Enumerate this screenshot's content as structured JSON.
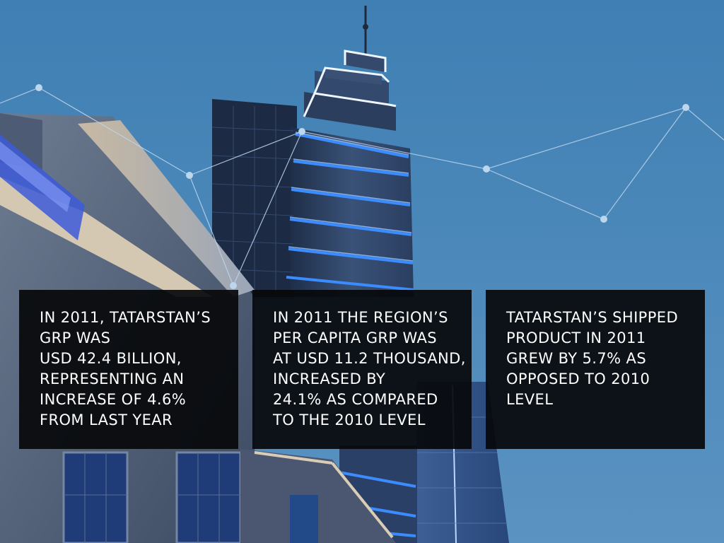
{
  "background": {
    "subject": "illuminated tower with network line overlay",
    "sky_color": "#4a83b4",
    "accent_glow": "#2f7dff"
  },
  "panels": [
    {
      "text": "In 2011, Tatarstan’s\nGRP was\nUSD 42.4 billion,\nrepresenting an\nincrease of 4.6%\nfrom last year"
    },
    {
      "text": "In 2011 the region’s\nper capita GRP was\nat USD 11.2 thousand,\nincreased by\n24.1% as compared\nto the 2010 level"
    },
    {
      "text": "Tatarstan’s shipped\nproduct in 2011\ngrew by 5.7% as\nopposed to 2010\nlevel"
    }
  ]
}
